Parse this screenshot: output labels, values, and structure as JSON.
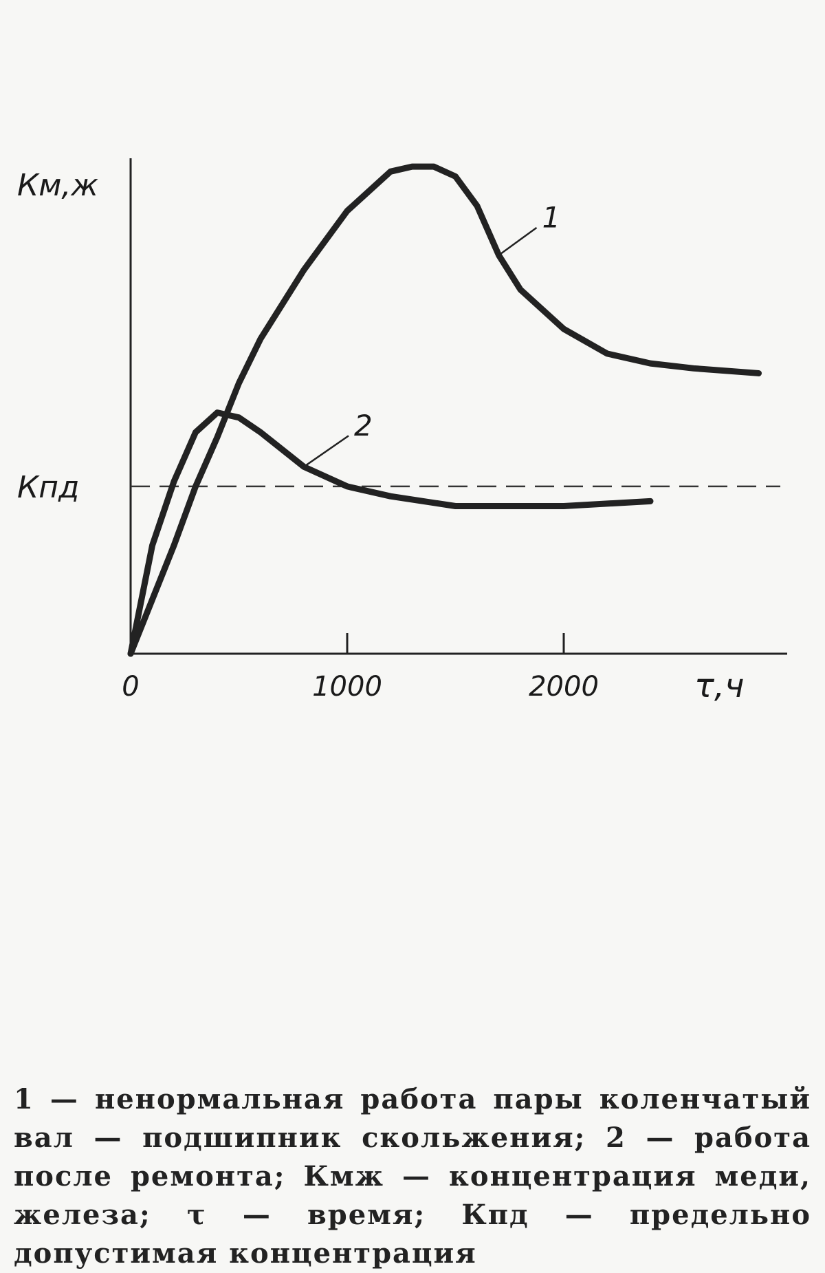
{
  "chart_data": {
    "type": "line",
    "y_label": "Км,ж",
    "x_label": "τ,ч",
    "xlim": [
      0,
      3000
    ],
    "xticks": [
      0,
      1000,
      2000
    ],
    "ylim": [
      0,
      100
    ],
    "yticks": [
      {
        "value": 34,
        "label": "Кпд"
      }
    ],
    "series": [
      {
        "name": "1",
        "color": "#222222",
        "x": [
          0,
          100,
          200,
          300,
          400,
          500,
          600,
          800,
          1000,
          1200,
          1300,
          1400,
          1500,
          1600,
          1700,
          1800,
          2000,
          2200,
          2400,
          2600,
          2900
        ],
        "values": [
          0,
          11,
          22,
          34,
          44,
          55,
          64,
          78,
          90,
          98,
          99,
          99,
          97,
          91,
          81,
          74,
          66,
          61,
          59,
          58,
          57
        ]
      },
      {
        "name": "2",
        "color": "#222222",
        "x": [
          0,
          100,
          200,
          300,
          400,
          500,
          600,
          800,
          1000,
          1200,
          1500,
          2000,
          2400
        ],
        "values": [
          0,
          22,
          35,
          45,
          49,
          48,
          45,
          38,
          34,
          32,
          30,
          30,
          31
        ]
      }
    ],
    "caption": "1 — ненормальная работа пары коленчатый вал — подшипник скольжения; 2 — работа после ремонта; Кмж — концентрация меди, железа; τ — время; Кпд — предельно допустимая концентрация"
  }
}
